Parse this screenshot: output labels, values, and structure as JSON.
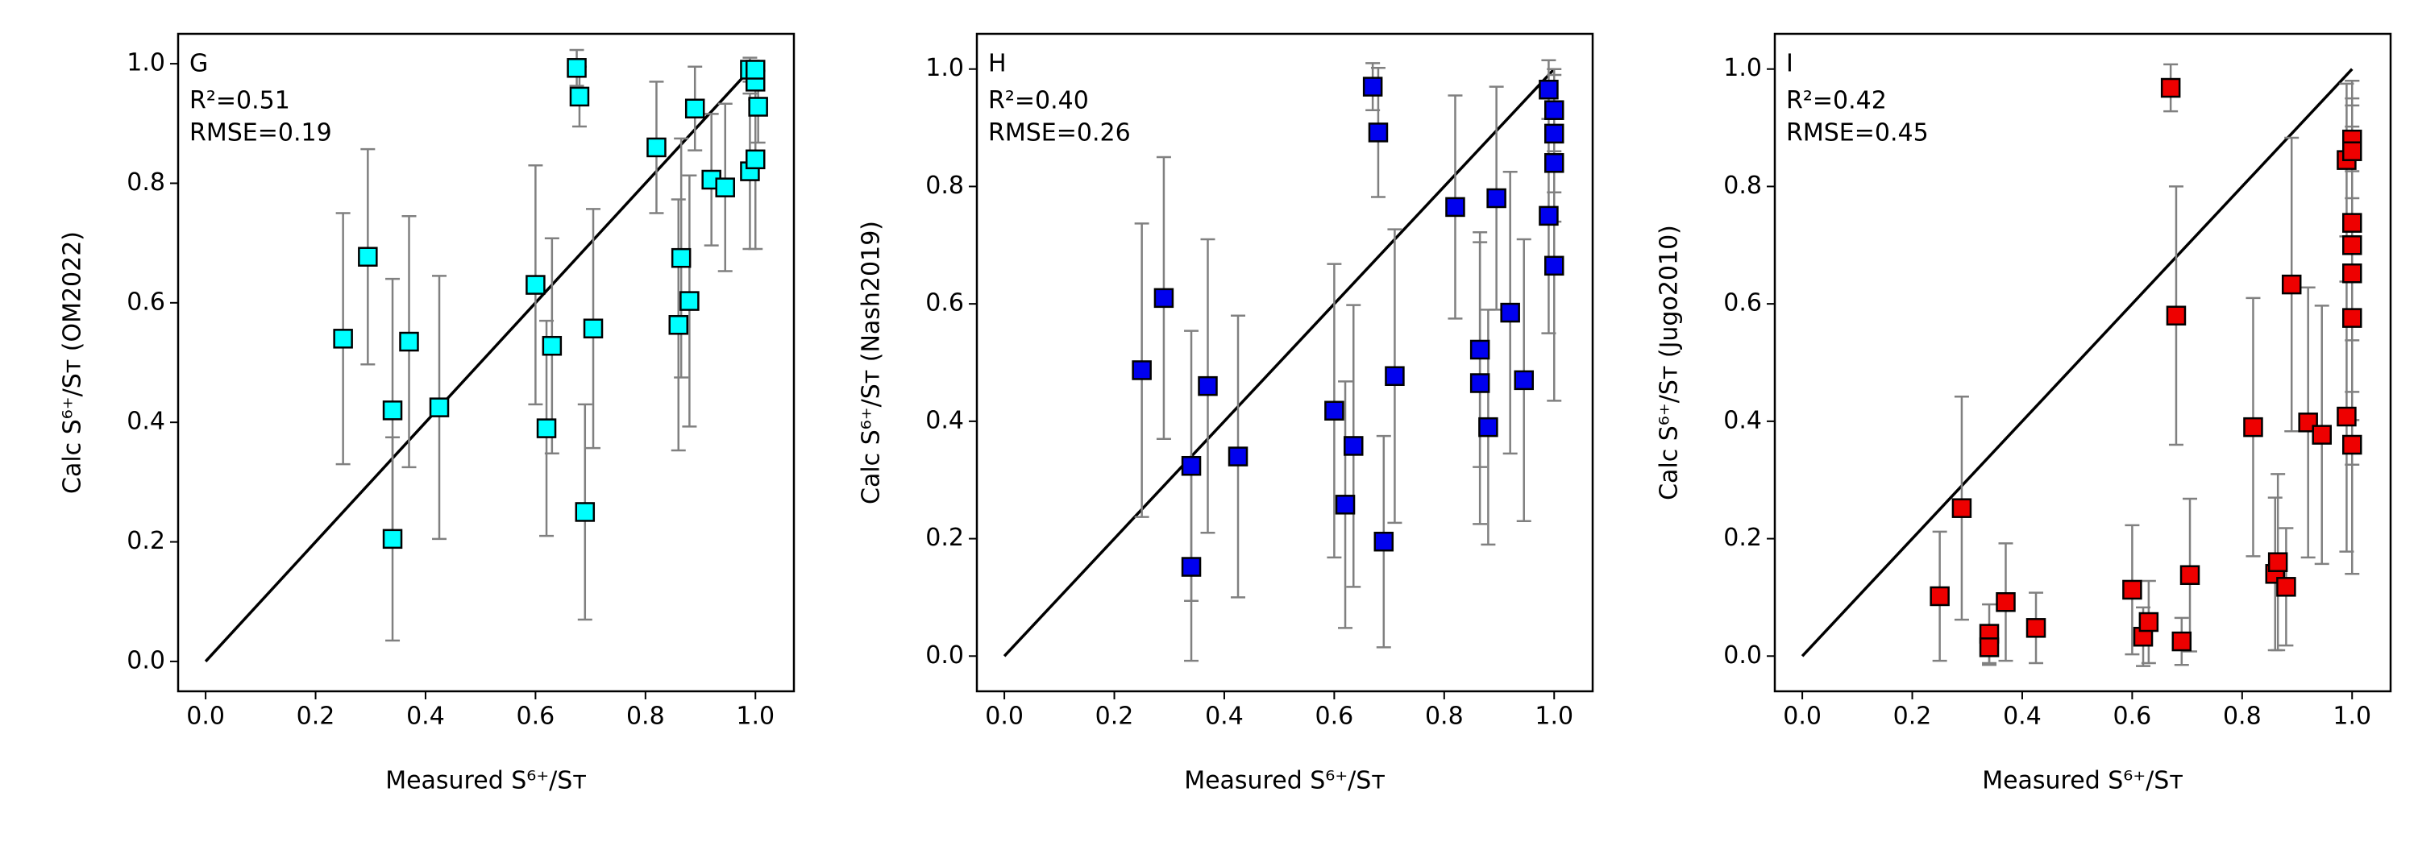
{
  "chart_data": [
    {
      "type": "scatter",
      "panel_label": "G",
      "annotations": [
        "R²=0.51",
        "RMSE=0.19"
      ],
      "x_label": "Measured S⁶⁺/Sᴛ",
      "y_label": "Calc S⁶⁺/Sᴛ (OM2022)",
      "color": "#00ffff",
      "edge_color": "#000000",
      "error_color": "#808080",
      "x": [
        0.25,
        0.295,
        0.34,
        0.34,
        0.37,
        0.425,
        0.6,
        0.62,
        0.63,
        0.675,
        0.68,
        0.69,
        0.705,
        0.82,
        0.86,
        0.865,
        0.88,
        0.89,
        0.92,
        0.945,
        0.99,
        0.99,
        1.0,
        1.0,
        1.005,
        1.0
      ],
      "y": [
        0.54,
        0.677,
        0.42,
        0.205,
        0.535,
        0.425,
        0.63,
        0.39,
        0.528,
        0.993,
        0.945,
        0.25,
        0.557,
        0.86,
        0.563,
        0.675,
        0.603,
        0.925,
        0.806,
        0.793,
        0.99,
        0.82,
        0.97,
        0.84,
        0.928,
        0.99
      ],
      "yerr": [
        0.21,
        0.18,
        0.22,
        0.17,
        0.21,
        0.22,
        0.2,
        0.18,
        0.18,
        0.03,
        0.05,
        0.18,
        0.2,
        0.11,
        0.21,
        0.2,
        0.21,
        0.07,
        0.11,
        0.14,
        0.02,
        0.13,
        0.03,
        0.15,
        0.06,
        0.01
      ],
      "identity_line": {
        "x": [
          0,
          1
        ],
        "y": [
          0,
          1
        ]
      },
      "xlim": [
        -0.05,
        1.07
      ],
      "ylim": [
        -0.05,
        1.05
      ],
      "xticks": [
        {
          "value": 0,
          "label": "0.0"
        },
        0.2,
        0.4,
        0.6,
        0.8,
        {
          "value": 1,
          "label": "1.0"
        }
      ],
      "yticks": [
        {
          "value": 0,
          "label": "0.0"
        },
        0.2,
        0.4,
        0.6,
        0.8,
        {
          "value": 1,
          "label": "1.0"
        }
      ]
    },
    {
      "type": "scatter",
      "panel_label": "H",
      "annotations": [
        "R²=0.40",
        "RMSE=0.26"
      ],
      "x_label": "Measured S⁶⁺/Sᴛ",
      "y_label": "Calc S⁶⁺/Sᴛ (Nash2019)",
      "color": "#0000ee",
      "edge_color": "#000000",
      "error_color": "#808080",
      "x": [
        0.25,
        0.29,
        0.34,
        0.34,
        0.37,
        0.425,
        0.6,
        0.62,
        0.635,
        0.67,
        0.68,
        0.69,
        0.71,
        0.82,
        0.865,
        0.865,
        0.88,
        0.895,
        0.92,
        0.945,
        0.99,
        0.99,
        1.0,
        1.0,
        1.0,
        1.0
      ],
      "y": [
        0.487,
        0.61,
        0.324,
        0.152,
        0.46,
        0.34,
        0.418,
        0.258,
        0.358,
        0.97,
        0.892,
        0.195,
        0.477,
        0.765,
        0.465,
        0.522,
        0.39,
        0.78,
        0.585,
        0.47,
        0.965,
        0.75,
        0.93,
        0.84,
        0.665,
        0.89
      ],
      "yerr": [
        0.25,
        0.24,
        0.23,
        0.16,
        0.25,
        0.24,
        0.25,
        0.21,
        0.24,
        0.04,
        0.11,
        0.18,
        0.25,
        0.19,
        0.24,
        0.2,
        0.2,
        0.19,
        0.24,
        0.24,
        0.05,
        0.2,
        0.07,
        0.1,
        0.23,
        0.1
      ],
      "identity_line": {
        "x": [
          0,
          1
        ],
        "y": [
          0,
          1
        ]
      },
      "xlim": [
        -0.05,
        1.07
      ],
      "ylim": [
        -0.06,
        1.06
      ],
      "xticks": [
        {
          "value": 0,
          "label": "0.0"
        },
        0.2,
        0.4,
        0.6,
        0.8,
        {
          "value": 1,
          "label": "1.0"
        }
      ],
      "yticks": [
        {
          "value": 0,
          "label": "0.0"
        },
        0.2,
        0.4,
        0.6,
        0.8,
        {
          "value": 1,
          "label": "1.0"
        }
      ]
    },
    {
      "type": "scatter",
      "panel_label": "I",
      "annotations": [
        "R²=0.42",
        "RMSE=0.45"
      ],
      "x_label": "Measured S⁶⁺/Sᴛ",
      "y_label": "Calc S⁶⁺/Sᴛ (Jugo2010)",
      "color": "#ee0000",
      "edge_color": "#000000",
      "error_color": "#808080",
      "x": [
        0.25,
        0.29,
        0.34,
        0.34,
        0.37,
        0.425,
        0.6,
        0.62,
        0.63,
        0.67,
        0.68,
        0.69,
        0.705,
        0.82,
        0.86,
        0.865,
        0.88,
        0.89,
        0.92,
        0.945,
        0.99,
        0.99,
        1.0,
        1.0,
        1.0,
        1.0,
        1.0,
        1.0,
        1.0
      ],
      "y": [
        0.102,
        0.252,
        0.038,
        0.015,
        0.092,
        0.048,
        0.113,
        0.033,
        0.058,
        0.968,
        0.58,
        0.025,
        0.138,
        0.39,
        0.14,
        0.16,
        0.118,
        0.633,
        0.398,
        0.377,
        0.845,
        0.408,
        0.88,
        0.86,
        0.7,
        0.36,
        0.738,
        0.652,
        0.576
      ],
      "yerr": [
        0.11,
        0.19,
        0.05,
        0.03,
        0.1,
        0.06,
        0.11,
        0.05,
        0.07,
        0.04,
        0.22,
        0.04,
        0.13,
        0.22,
        0.13,
        0.15,
        0.1,
        0.25,
        0.23,
        0.22,
        0.13,
        0.23,
        0.1,
        0.12,
        0.25,
        0.22,
        0.2,
        0.25,
        0.25
      ],
      "identity_line": {
        "x": [
          0,
          1
        ],
        "y": [
          0,
          1
        ]
      },
      "xlim": [
        -0.05,
        1.07
      ],
      "ylim": [
        -0.06,
        1.06
      ],
      "xticks": [
        {
          "value": 0,
          "label": "0.0"
        },
        0.2,
        0.4,
        0.6,
        0.8,
        {
          "value": 1,
          "label": "1.0"
        }
      ],
      "yticks": [
        {
          "value": 0,
          "label": "0.0"
        },
        0.2,
        0.4,
        0.6,
        0.8,
        {
          "value": 1,
          "label": "1.0"
        }
      ]
    }
  ]
}
